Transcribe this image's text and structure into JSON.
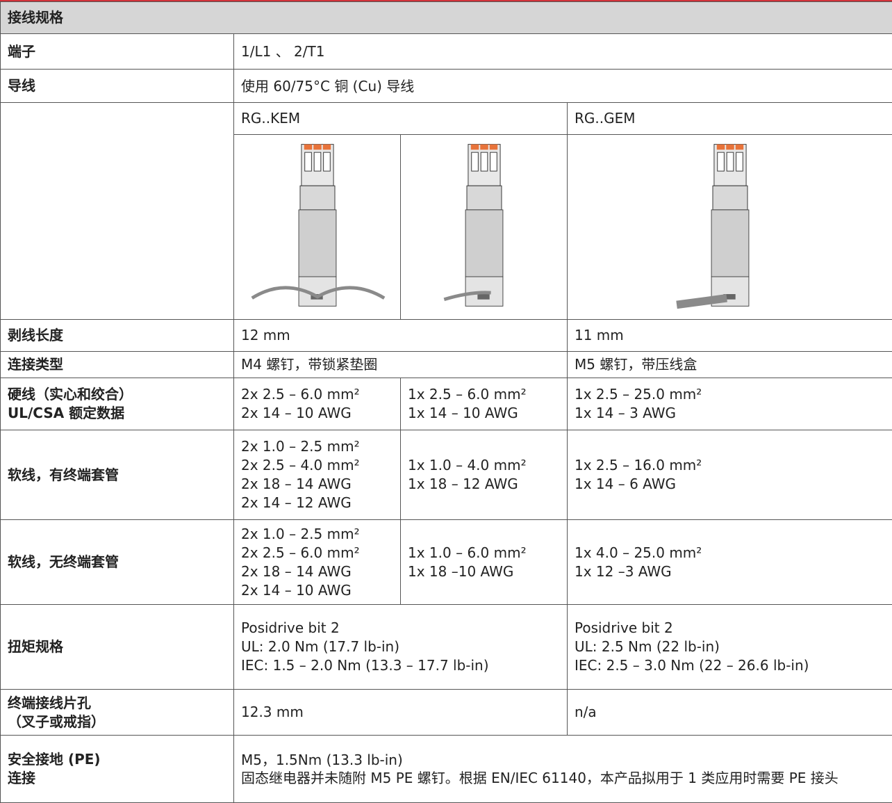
{
  "header": {
    "title": "接线规格"
  },
  "rows": [
    {
      "label": [
        "端子"
      ],
      "cells": [
        [
          "1/L1 、 2/T1"
        ]
      ]
    },
    {
      "label": [
        "导线"
      ],
      "cells": [
        [
          "使用 60/75°C 铜 (Cu) 导线"
        ]
      ]
    },
    {
      "label": [
        "剥线长度"
      ],
      "cells": [
        [
          "12 mm"
        ],
        [
          "11 mm"
        ]
      ]
    },
    {
      "label": [
        "连接类型"
      ],
      "cells": [
        [
          "M4 螺钉，带锁紧垫圈"
        ],
        [
          "M5 螺钉，带压线盒"
        ]
      ]
    },
    {
      "label": [
        "硬线（实心和绞合）",
        "UL/CSA 额定数据"
      ],
      "cells": [
        [
          "2x 2.5 – 6.0 mm²",
          "2x 14 – 10 AWG"
        ],
        [
          "1x 2.5 – 6.0 mm²",
          "1x 14 – 10 AWG"
        ],
        [
          "1x 2.5 – 25.0 mm²",
          "1x 14 – 3 AWG"
        ]
      ]
    },
    {
      "label": [
        "软线，有终端套管"
      ],
      "cells": [
        [
          "2x 1.0 – 2.5 mm²",
          "2x 2.5 – 4.0 mm²",
          "2x 18 – 14 AWG",
          "2x 14 – 12 AWG"
        ],
        [
          "1x 1.0 – 4.0 mm²",
          "1x 18 – 12 AWG"
        ],
        [
          "1x 2.5 – 16.0 mm²",
          "1x 14 – 6 AWG"
        ]
      ]
    },
    {
      "label": [
        "软线，无终端套管"
      ],
      "cells": [
        [
          "2x 1.0 – 2.5 mm²",
          "2x 2.5 – 6.0 mm²",
          "2x 18 – 14 AWG",
          "2x 14 – 10 AWG"
        ],
        [
          "1x 1.0 – 6.0 mm²",
          "1x 18 –10 AWG"
        ],
        [
          "1x 4.0 – 25.0 mm²",
          "1x 12 –3 AWG"
        ]
      ]
    },
    {
      "label": [
        "扭矩规格"
      ],
      "cells": [
        [
          "Posidrive bit 2",
          "UL: 2.0 Nm (17.7 lb-in)",
          "IEC: 1.5 – 2.0 Nm (13.3 – 17.7 lb-in)"
        ],
        [
          "Posidrive bit 2",
          "UL: 2.5 Nm (22 lb-in)",
          "IEC: 2.5 – 3.0 Nm (22 – 26.6 lb-in)"
        ]
      ]
    },
    {
      "label": [
        "终端接线片孔",
        "（叉子或戒指）"
      ],
      "cells": [
        [
          "12.3 mm"
        ],
        [
          "n/a"
        ]
      ]
    },
    {
      "label": [
        "安全接地 (PE)",
        "连接"
      ],
      "cells": [
        [
          "M5，1.5Nm (13.3 lb-in)",
          "固态继电器并未随附 M5 PE 螺钉。根据 EN/IEC 61140，本产品拟用于 1 类应用时需要 PE 接头"
        ]
      ]
    }
  ],
  "models": [
    "RG..KEM",
    "RG..GEM"
  ]
}
